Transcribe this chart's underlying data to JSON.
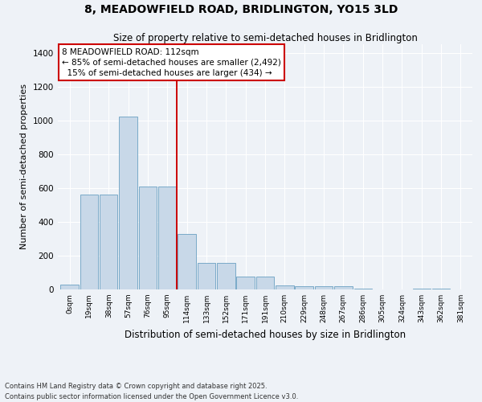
{
  "title": "8, MEADOWFIELD ROAD, BRIDLINGTON, YO15 3LD",
  "subtitle": "Size of property relative to semi-detached houses in Bridlington",
  "xlabel": "Distribution of semi-detached houses by size in Bridlington",
  "ylabel": "Number of semi-detached properties",
  "bin_labels": [
    "0sqm",
    "19sqm",
    "38sqm",
    "57sqm",
    "76sqm",
    "95sqm",
    "114sqm",
    "133sqm",
    "152sqm",
    "171sqm",
    "191sqm",
    "210sqm",
    "229sqm",
    "248sqm",
    "267sqm",
    "286sqm",
    "305sqm",
    "324sqm",
    "343sqm",
    "362sqm",
    "381sqm"
  ],
  "bar_heights": [
    30,
    560,
    560,
    1020,
    610,
    610,
    330,
    155,
    155,
    75,
    75,
    25,
    20,
    20,
    18,
    5,
    0,
    0,
    5,
    5,
    0
  ],
  "bar_color": "#c8d8e8",
  "bar_edgecolor": "#7aaac8",
  "property_label": "8 MEADOWFIELD ROAD: 112sqm",
  "pct_smaller": 85,
  "count_smaller": 2492,
  "pct_larger": 15,
  "count_larger": 434,
  "vline_bin": 6,
  "ylim": [
    0,
    1450
  ],
  "yticks": [
    0,
    200,
    400,
    600,
    800,
    1000,
    1200,
    1400
  ],
  "background_color": "#eef2f7",
  "footer": "Contains HM Land Registry data © Crown copyright and database right 2025.\nContains public sector information licensed under the Open Government Licence v3.0.",
  "annotation_box_facecolor": "#ffffff",
  "annotation_box_edgecolor": "#cc0000",
  "vline_color": "#cc0000",
  "grid_color": "#ffffff",
  "title_fontsize": 10,
  "subtitle_fontsize": 8.5,
  "ylabel_fontsize": 8,
  "xlabel_fontsize": 8.5,
  "footer_fontsize": 6,
  "ann_fontsize": 7.5
}
